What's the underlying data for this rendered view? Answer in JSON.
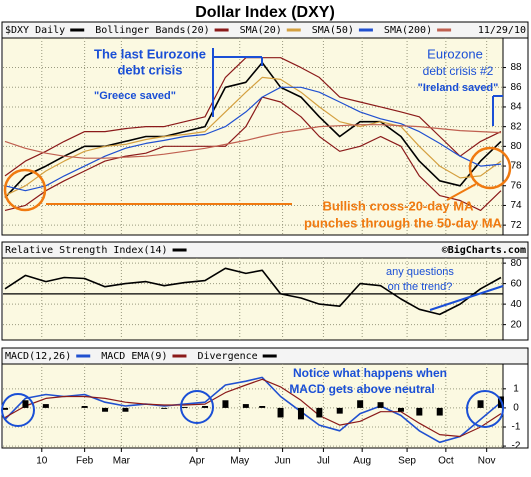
{
  "chart_data": [
    {
      "type": "line",
      "title": "Dollar Index (DXY)",
      "date": "11/29/10",
      "x": [
        1,
        11,
        21,
        30,
        40,
        50,
        60,
        70,
        79,
        89,
        99,
        109,
        119,
        127,
        136,
        146,
        155,
        165,
        175,
        185,
        195,
        204,
        214,
        224,
        234,
        244
      ],
      "xlim": [
        0,
        245
      ],
      "ylim": [
        71,
        91
      ],
      "yticks": [
        72,
        74,
        76,
        78,
        80,
        82,
        84,
        86,
        88
      ],
      "grid": true,
      "series": [
        {
          "name": "$DXY Daily",
          "color": "#000000",
          "values": [
            74.8,
            77,
            78,
            79,
            80,
            80,
            80.5,
            81,
            81,
            81.5,
            82,
            86,
            86.5,
            88.5,
            86,
            85,
            83,
            81,
            82.5,
            82.5,
            81,
            78.5,
            76.5,
            76,
            78.5,
            80.5
          ]
        },
        {
          "name": "Bollinger Bands(20)",
          "color": "#8b1a1a",
          "values": [
            77,
            78.5,
            79.5,
            80.5,
            81.5,
            81.5,
            81.8,
            82,
            82,
            82.5,
            83,
            87,
            89,
            89,
            89,
            88,
            87,
            85,
            84.5,
            84,
            83.5,
            83,
            81,
            79,
            80.5,
            81.5
          ],
          "lower": [
            73.5,
            74,
            75.5,
            76.5,
            77.5,
            78.5,
            79,
            79.3,
            80,
            80,
            80,
            80,
            82,
            85,
            84.5,
            83,
            81,
            79.5,
            80,
            81,
            80,
            77,
            75,
            74.5,
            73.5,
            75.5
          ]
        },
        {
          "name": "SMA(20)",
          "color": "#d4a040",
          "values": [
            75,
            76,
            77.5,
            78.5,
            79.5,
            80,
            80.2,
            80.7,
            81,
            81.2,
            81.5,
            83.5,
            85.5,
            87,
            86.8,
            85.5,
            84,
            82.5,
            82,
            82.5,
            82,
            80,
            78,
            76.8,
            77,
            78.5
          ]
        },
        {
          "name": "SMA(50)",
          "color": "#2050d0",
          "values": [
            76,
            75.5,
            76,
            77,
            78,
            79,
            79.8,
            80.3,
            80.6,
            81,
            81.2,
            82,
            83.5,
            85,
            86,
            86,
            85.5,
            84.5,
            83.5,
            82.8,
            82.3,
            81.5,
            80.3,
            79,
            78,
            78.2
          ]
        },
        {
          "name": "SMA(200)",
          "color": "#c06050",
          "values": [
            80.5,
            79.8,
            79.3,
            79,
            78.8,
            78.8,
            78.9,
            79,
            79.2,
            79.5,
            79.8,
            80.2,
            80.6,
            81,
            81.4,
            81.7,
            82,
            82.1,
            82.2,
            82.2,
            82.1,
            82,
            81.8,
            81.6,
            81.5,
            81.4
          ]
        }
      ],
      "annotations": [
        "The last Eurozone",
        "debt crisis",
        "\"Greece saved\"",
        "Eurozone",
        "debt crisis #2",
        "\"Ireland saved\"",
        "Bullish cross-20-day MA",
        "punches through the 50-day MA"
      ]
    },
    {
      "type": "line",
      "source": "©BigCharts.com",
      "x": [
        1,
        11,
        21,
        30,
        40,
        50,
        60,
        70,
        79,
        89,
        99,
        109,
        119,
        127,
        136,
        146,
        155,
        165,
        175,
        185,
        195,
        204,
        214,
        224,
        234,
        244
      ],
      "xlim": [
        0,
        245
      ],
      "ylim": [
        5,
        85
      ],
      "yticks": [
        20,
        40,
        60,
        80
      ],
      "grid": true,
      "hline": 50,
      "series": [
        {
          "name": "Relative Strength Index(14)",
          "color": "#000000",
          "values": [
            55,
            68,
            62,
            66,
            65,
            57,
            60,
            62,
            58,
            61,
            63,
            75,
            70,
            73,
            50,
            46,
            40,
            38,
            60,
            58,
            45,
            35,
            30,
            40,
            55,
            66
          ]
        }
      ],
      "annotations": [
        "any questions",
        "on the trend?"
      ]
    },
    {
      "type": "line",
      "x": [
        1,
        11,
        21,
        30,
        40,
        50,
        60,
        70,
        79,
        89,
        99,
        109,
        119,
        127,
        136,
        146,
        155,
        165,
        175,
        185,
        195,
        204,
        214,
        224,
        234,
        244
      ],
      "xlim": [
        0,
        245
      ],
      "ylim": [
        -2.1,
        2.3
      ],
      "yticks": [
        1,
        0,
        -1,
        -2
      ],
      "grid": true,
      "xticks": [
        {
          "value": 19,
          "label": "10"
        },
        {
          "value": 40,
          "label": "Feb"
        },
        {
          "value": 58,
          "label": "Mar"
        },
        {
          "value": 95,
          "label": "Apr"
        },
        {
          "value": 116,
          "label": "May"
        },
        {
          "value": 137,
          "label": "Jun"
        },
        {
          "value": 157,
          "label": "Jul"
        },
        {
          "value": 176,
          "label": "Aug"
        },
        {
          "value": 198,
          "label": "Sep"
        },
        {
          "value": 217,
          "label": "Oct"
        },
        {
          "value": 237,
          "label": "Nov"
        }
      ],
      "series": [
        {
          "name": "MACD(12,26)",
          "color": "#2050d0",
          "values": [
            -0.6,
            0.5,
            0.7,
            0.6,
            0.7,
            0.3,
            0.1,
            0.2,
            0.1,
            0.2,
            0.3,
            1.2,
            1.4,
            1.6,
            0.6,
            -0.2,
            -0.9,
            -1.2,
            -0.3,
            0.1,
            -0.4,
            -1.2,
            -1.8,
            -1.5,
            -0.6,
            0.3
          ]
        },
        {
          "name": "MACD EMA(9)",
          "color": "#8b1a1a",
          "values": [
            -0.5,
            0.1,
            0.5,
            0.6,
            0.6,
            0.5,
            0.3,
            0.2,
            0.15,
            0.15,
            0.2,
            0.8,
            1.2,
            1.5,
            1.1,
            0.4,
            -0.4,
            -0.9,
            -0.7,
            -0.2,
            -0.2,
            -0.8,
            -1.4,
            -1.5,
            -1.0,
            -0.3
          ]
        },
        {
          "name": "Divergence",
          "type": "bar",
          "color": "#000000",
          "values": [
            -0.1,
            0.4,
            0.2,
            0,
            0.1,
            -0.2,
            -0.2,
            0,
            -0.05,
            0.05,
            0.1,
            0.4,
            0.2,
            0.1,
            -0.5,
            -0.6,
            -0.5,
            -0.3,
            0.4,
            0.3,
            -0.2,
            -0.4,
            -0.4,
            0,
            0.4,
            0.6
          ]
        }
      ],
      "annotations": [
        "Notice what happens when",
        "MACD gets above neutral"
      ]
    }
  ]
}
